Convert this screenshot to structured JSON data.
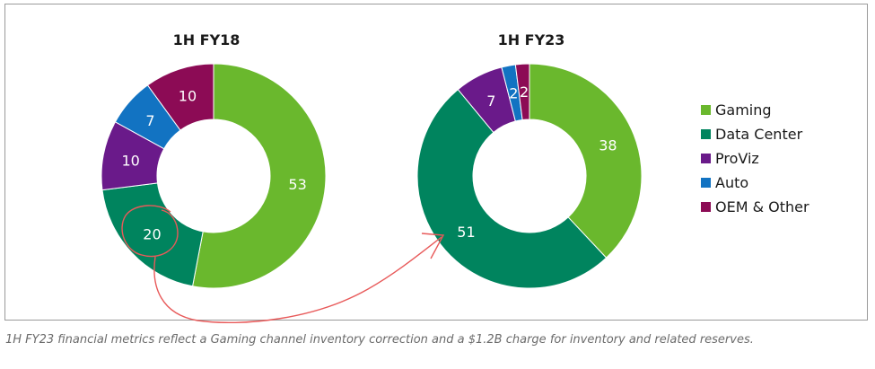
{
  "colors": {
    "Gaming": "#6ab82d",
    "Data Center": "#00845e",
    "ProViz": "#6a1a8a",
    "Auto": "#1273c2",
    "OEM & Other": "#8c0b55",
    "annotation": "#e85a5a"
  },
  "chart_data": [
    {
      "type": "pie",
      "variant": "donut",
      "title": "1H FY18",
      "categories": [
        "Gaming",
        "Data Center",
        "ProViz",
        "Auto",
        "OEM & Other"
      ],
      "values": [
        53,
        20,
        10,
        7,
        10
      ],
      "labels": [
        "53",
        "20",
        "10",
        "7",
        "10"
      ],
      "legend_position": "right"
    },
    {
      "type": "pie",
      "variant": "donut",
      "title": "1H FY23",
      "categories": [
        "Gaming",
        "Data Center",
        "ProViz",
        "Auto",
        "OEM & Other"
      ],
      "values": [
        38,
        51,
        7,
        2,
        2
      ],
      "labels": [
        "38",
        "51",
        "7",
        "2",
        "2"
      ],
      "legend_position": "right"
    }
  ],
  "legend": [
    "Gaming",
    "Data Center",
    "ProViz",
    "Auto",
    "OEM & Other"
  ],
  "caption": "1H FY23 financial metrics reflect a Gaming channel inventory correction and a $1.2B charge for inventory and related reserves."
}
